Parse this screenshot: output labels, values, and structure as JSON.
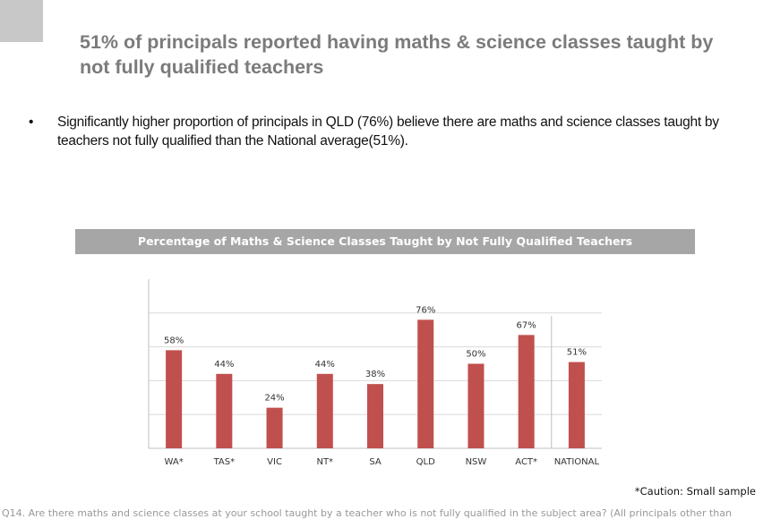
{
  "slide": {
    "title": "51% of principals reported having maths & science classes taught by not fully qualified teachers",
    "bullet_symbol": "•",
    "bullet_text": "Significantly higher proportion of principals in QLD (76%) believe there are maths and science classes taught by teachers not fully qualified than the National average(51%).",
    "caution": "*Caution: Small sample",
    "footnote": "Q14. Are there maths and science classes at your school taught by a teacher who is not fully qualified in the subject area? (All principals other than"
  },
  "colors": {
    "bar": "#c0504d",
    "header_bg": "#a6a6a6",
    "grid": "#d9d9d9"
  },
  "chart_data": {
    "type": "bar",
    "title": "Percentage of Maths & Science Classes Taught by Not Fully Qualified Teachers",
    "categories": [
      "WA*",
      "TAS*",
      "VIC",
      "NT*",
      "SA",
      "QLD",
      "NSW",
      "ACT*",
      "NATIONAL"
    ],
    "values": [
      58,
      44,
      24,
      44,
      38,
      76,
      50,
      67,
      51
    ],
    "value_labels": [
      "58%",
      "44%",
      "24%",
      "44%",
      "38%",
      "76%",
      "50%",
      "67%",
      "51%"
    ],
    "ylim": [
      0,
      100
    ],
    "grid": true,
    "legend": "none"
  }
}
